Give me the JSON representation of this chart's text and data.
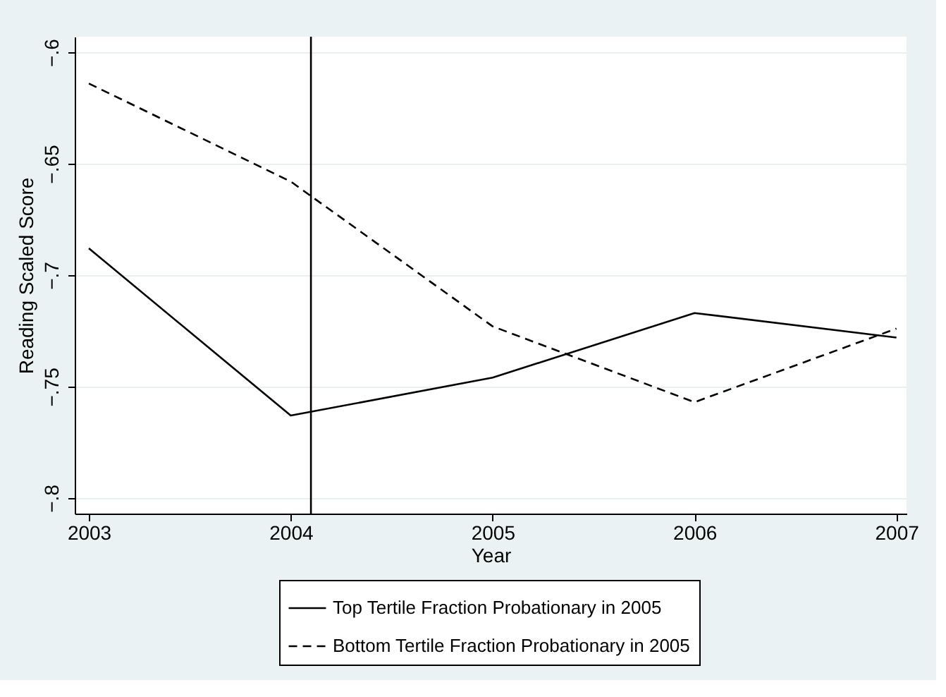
{
  "chart_data": {
    "type": "line",
    "xlabel": "Year",
    "ylabel": "Reading Scaled Score",
    "x": [
      2003,
      2004,
      2005,
      2006,
      2007
    ],
    "series": [
      {
        "name": "Top Tertile Fraction Probationary in 2005",
        "color": "#000000",
        "line_style": "solid",
        "values": [
          -0.688,
          -0.763,
          -0.746,
          -0.717,
          -0.728
        ]
      },
      {
        "name": "Bottom Tertile Fraction Probationary in 2005",
        "color": "#000000",
        "line_style": "dashed",
        "values": [
          -0.614,
          -0.658,
          -0.723,
          -0.757,
          -0.724
        ]
      }
    ],
    "xlim": [
      2002.93,
      2007.05
    ],
    "xticks": [
      2003,
      2004,
      2005,
      2006,
      2007
    ],
    "ylim": [
      -0.807,
      -0.593
    ],
    "yticks": [
      {
        "value": -0.8,
        "label": "−.8"
      },
      {
        "value": -0.75,
        "label": "−.75"
      },
      {
        "value": -0.7,
        "label": "−.7"
      },
      {
        "value": -0.65,
        "label": "−.65"
      },
      {
        "value": -0.6,
        "label": "−.6"
      }
    ],
    "ref_lines": [
      {
        "axis": "x",
        "value": 2004.1,
        "color": "#000000"
      }
    ],
    "grid": "y",
    "legend": "bottom",
    "marker": "none"
  }
}
